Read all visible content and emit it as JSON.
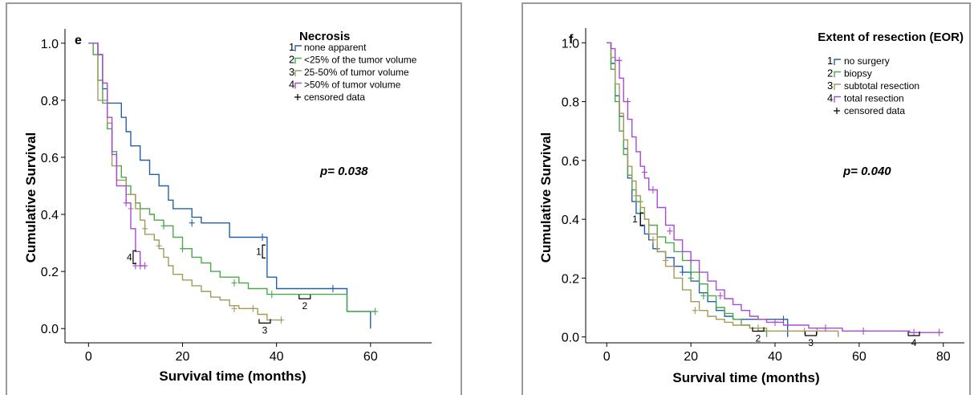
{
  "chart_data": [
    {
      "type": "line",
      "panel_letter": "e",
      "legend_title": "Necrosis",
      "xlabel": "Survival time (months)",
      "ylabel": "Cumulative Survival",
      "xlim": [
        -5,
        73
      ],
      "ylim": [
        -0.05,
        1.05
      ],
      "xticks": [
        0,
        20,
        40,
        60
      ],
      "yticks": [
        0.0,
        0.2,
        0.4,
        0.6,
        0.8,
        1.0
      ],
      "xtick_labels": [
        "0",
        "20",
        "40",
        "60"
      ],
      "ytick_labels": [
        "0.0",
        "0.2",
        "0.4",
        "0.6",
        "0.8",
        "1.0"
      ],
      "p_value": "p= 0.038",
      "censored_label": "censored data",
      "legend_placement": "top-right",
      "series": [
        {
          "num": "1",
          "name": "none apparent",
          "color": "#2460a7",
          "x": [
            0,
            2,
            3,
            4,
            6,
            7,
            8,
            9,
            11,
            13,
            15,
            17,
            18,
            22,
            24,
            26,
            30,
            36,
            38,
            40,
            52,
            55,
            60
          ],
          "y": [
            1.0,
            0.96,
            0.84,
            0.79,
            0.79,
            0.74,
            0.69,
            0.64,
            0.59,
            0.54,
            0.5,
            0.45,
            0.42,
            0.39,
            0.37,
            0.37,
            0.32,
            0.32,
            0.18,
            0.14,
            0.14,
            0.06,
            0.0
          ],
          "censored": [
            [
              22,
              0.37
            ],
            [
              37,
              0.32
            ],
            [
              52,
              0.14
            ]
          ]
        },
        {
          "num": "2",
          "name": "<25% of the tumor volume",
          "color": "#4aa94a",
          "x": [
            0,
            1,
            2,
            3,
            4,
            5,
            6,
            7,
            8,
            9,
            10,
            11,
            13,
            14,
            16,
            18,
            20,
            22,
            24,
            26,
            28,
            30,
            32,
            34,
            36,
            38,
            45,
            49,
            55,
            60,
            61
          ],
          "y": [
            1.0,
            0.96,
            0.87,
            0.79,
            0.7,
            0.62,
            0.57,
            0.53,
            0.5,
            0.47,
            0.44,
            0.42,
            0.4,
            0.38,
            0.36,
            0.32,
            0.28,
            0.25,
            0.23,
            0.2,
            0.18,
            0.18,
            0.16,
            0.14,
            0.14,
            0.12,
            0.12,
            0.12,
            0.06,
            0.06,
            0.06
          ],
          "censored": [
            [
              16,
              0.36
            ],
            [
              20,
              0.28
            ],
            [
              31,
              0.16
            ],
            [
              39,
              0.12
            ],
            [
              61,
              0.06
            ]
          ]
        },
        {
          "num": "3",
          "name": "25-50% of tumor volume",
          "color": "#a39a5a",
          "x": [
            0,
            2,
            4,
            5,
            6,
            8,
            10,
            11,
            12,
            14,
            15,
            16,
            17,
            18,
            20,
            22,
            24,
            26,
            28,
            30,
            32,
            34,
            36,
            38,
            40,
            41
          ],
          "y": [
            1.0,
            0.8,
            0.72,
            0.57,
            0.52,
            0.47,
            0.42,
            0.38,
            0.33,
            0.31,
            0.28,
            0.25,
            0.22,
            0.19,
            0.17,
            0.15,
            0.13,
            0.11,
            0.1,
            0.08,
            0.07,
            0.07,
            0.05,
            0.03,
            0.03,
            0.03
          ],
          "censored": [
            [
              6,
              0.57
            ],
            [
              9,
              0.42
            ],
            [
              12,
              0.35
            ],
            [
              15,
              0.29
            ],
            [
              31,
              0.07
            ],
            [
              35,
              0.07
            ],
            [
              41,
              0.03
            ]
          ]
        },
        {
          "num": "4",
          "name": ">50% of tumor volume",
          "color": "#a94ad6",
          "x": [
            0,
            2,
            3,
            4,
            5,
            6,
            7,
            8,
            9,
            10,
            11,
            12
          ],
          "y": [
            1.0,
            0.96,
            0.86,
            0.74,
            0.61,
            0.5,
            0.5,
            0.44,
            0.35,
            0.27,
            0.22,
            0.22
          ],
          "censored": [
            [
              8,
              0.44
            ],
            [
              10,
              0.22
            ],
            [
              11,
              0.22
            ],
            [
              12,
              0.22
            ]
          ]
        }
      ],
      "annotations": [
        {
          "label": "1",
          "x": 37,
          "y": 0.27
        },
        {
          "label": "2",
          "x": 46,
          "y": 0.11
        },
        {
          "label": "3",
          "x": 37.5,
          "y": 0.025
        },
        {
          "label": "4",
          "x": 9.5,
          "y": 0.25
        }
      ]
    },
    {
      "type": "line",
      "panel_letter": "f",
      "legend_title": "Extent of resection (EOR)",
      "xlabel": "Survival time (months)",
      "ylabel": "Cumulative Survival",
      "xlim": [
        -5,
        85
      ],
      "ylim": [
        -0.02,
        1.05
      ],
      "xticks": [
        0,
        20,
        40,
        60,
        80
      ],
      "yticks": [
        0.0,
        0.2,
        0.4,
        0.6,
        0.8,
        1.0
      ],
      "xtick_labels": [
        "0",
        "20",
        "40",
        "60",
        "80"
      ],
      "ytick_labels": [
        "0.0",
        "0.2",
        "0.4",
        "0.6",
        "0.8",
        "1.0"
      ],
      "p_value": "p= 0.040",
      "censored_label": "censored data",
      "legend_placement": "top-right",
      "series": [
        {
          "num": "1",
          "name": "no surgery",
          "color": "#2460a7",
          "x": [
            0,
            1,
            2,
            3,
            4,
            5,
            6,
            7,
            8,
            9,
            10,
            11,
            12,
            14,
            16,
            18,
            20,
            22,
            24,
            26,
            28,
            30,
            34,
            38,
            42,
            43
          ],
          "y": [
            1.0,
            0.93,
            0.82,
            0.75,
            0.64,
            0.54,
            0.46,
            0.42,
            0.38,
            0.35,
            0.33,
            0.3,
            0.29,
            0.27,
            0.24,
            0.22,
            0.19,
            0.15,
            0.12,
            0.09,
            0.07,
            0.06,
            0.06,
            0.06,
            0.06,
            0.0
          ],
          "censored": [
            [
              12,
              0.3
            ],
            [
              18,
              0.22
            ],
            [
              42,
              0.06
            ]
          ]
        },
        {
          "num": "2",
          "name": "biopsy",
          "color": "#4aa94a",
          "x": [
            0,
            1,
            2,
            3,
            4,
            5,
            6,
            7,
            8,
            9,
            10,
            12,
            14,
            16,
            18,
            20,
            22,
            24,
            26,
            28,
            30,
            32,
            34,
            36,
            38
          ],
          "y": [
            1.0,
            0.91,
            0.8,
            0.7,
            0.62,
            0.55,
            0.5,
            0.46,
            0.42,
            0.4,
            0.38,
            0.34,
            0.32,
            0.29,
            0.26,
            0.22,
            0.18,
            0.14,
            0.1,
            0.08,
            0.06,
            0.04,
            0.03,
            0.02,
            0.0
          ],
          "censored": [
            [
              8,
              0.46
            ],
            [
              20,
              0.2
            ],
            [
              23,
              0.14
            ]
          ]
        },
        {
          "num": "3",
          "name": "subtotal resection",
          "color": "#a39a5a",
          "x": [
            0,
            1,
            2,
            3,
            4,
            5,
            6,
            7,
            8,
            9,
            10,
            12,
            14,
            16,
            18,
            20,
            22,
            24,
            26,
            28,
            30,
            34,
            38,
            44,
            50,
            55
          ],
          "y": [
            1.0,
            0.95,
            0.86,
            0.76,
            0.67,
            0.58,
            0.53,
            0.48,
            0.44,
            0.4,
            0.35,
            0.29,
            0.24,
            0.2,
            0.16,
            0.12,
            0.09,
            0.07,
            0.06,
            0.05,
            0.04,
            0.03,
            0.02,
            0.02,
            0.02,
            0.0
          ],
          "censored": [
            [
              7,
              0.48
            ],
            [
              11,
              0.33
            ],
            [
              14,
              0.26
            ],
            [
              21,
              0.09
            ],
            [
              36,
              0.03
            ],
            [
              47,
              0.02
            ],
            [
              50,
              0.02
            ]
          ]
        },
        {
          "num": "4",
          "name": "total resection",
          "color": "#a94ad6",
          "x": [
            0,
            1,
            2,
            3,
            4,
            5,
            6,
            7,
            8,
            9,
            10,
            12,
            14,
            16,
            18,
            20,
            22,
            24,
            26,
            28,
            30,
            32,
            34,
            36,
            38,
            42,
            48,
            56,
            64,
            72,
            80
          ],
          "y": [
            1.0,
            0.98,
            0.94,
            0.88,
            0.8,
            0.74,
            0.68,
            0.63,
            0.58,
            0.54,
            0.5,
            0.44,
            0.38,
            0.33,
            0.29,
            0.26,
            0.22,
            0.19,
            0.16,
            0.13,
            0.11,
            0.09,
            0.07,
            0.06,
            0.05,
            0.04,
            0.03,
            0.02,
            0.02,
            0.015,
            0.015
          ],
          "censored": [
            [
              3,
              0.94
            ],
            [
              5,
              0.8
            ],
            [
              9,
              0.56
            ],
            [
              11,
              0.5
            ],
            [
              15,
              0.36
            ],
            [
              20,
              0.26
            ],
            [
              27,
              0.14
            ],
            [
              40,
              0.05
            ],
            [
              52,
              0.03
            ],
            [
              61,
              0.02
            ],
            [
              73,
              0.015
            ],
            [
              79,
              0.015
            ]
          ]
        }
      ],
      "annotations": [
        {
          "label": "1",
          "x": 8,
          "y": 0.4
        },
        {
          "label": "2",
          "x": 36,
          "y": 0.025
        },
        {
          "label": "3",
          "x": 48.5,
          "y": 0.01
        },
        {
          "label": "4",
          "x": 73,
          "y": 0.01
        }
      ]
    }
  ]
}
